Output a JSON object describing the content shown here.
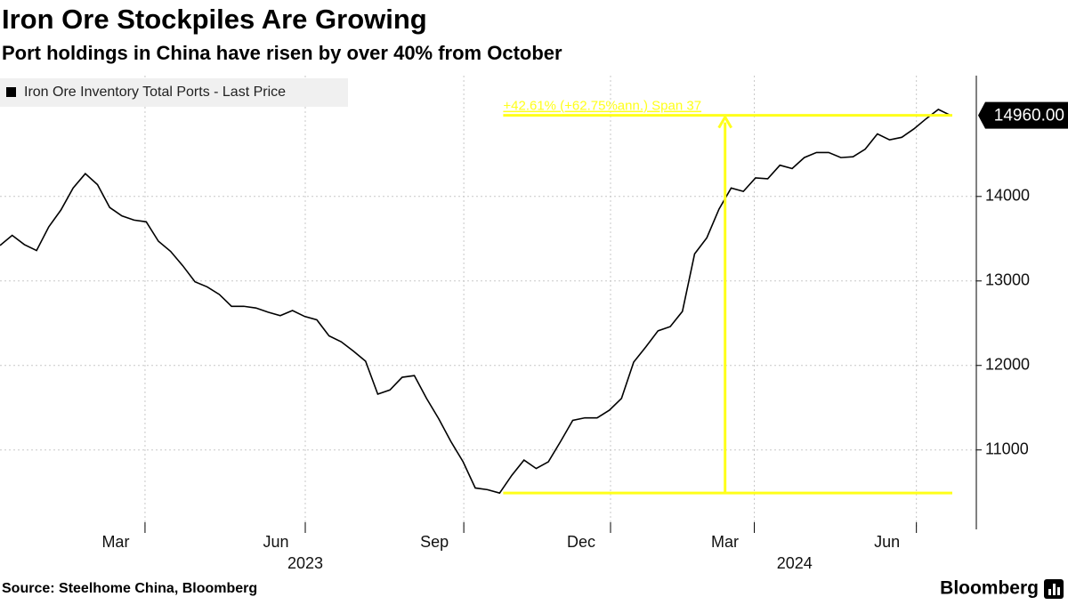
{
  "chart_data": {
    "type": "line",
    "title": "Iron Ore Stockpiles Are Growing",
    "subtitle": "Port holdings in China have risen by over 40% from October",
    "source": "Source: Steelhome China, Bloomberg",
    "brand": "Bloomberg",
    "categories": [
      null,
      null,
      null,
      null,
      null,
      null,
      null,
      null,
      null,
      null,
      null,
      null,
      null,
      null,
      null,
      null,
      null,
      null,
      null,
      null,
      null,
      null,
      null,
      null,
      null,
      null,
      null,
      null,
      null,
      null,
      null,
      null,
      null,
      null,
      null,
      null,
      null,
      null,
      null,
      null,
      null,
      null,
      null,
      null,
      null,
      null,
      null,
      null,
      null,
      null,
      null,
      null,
      null,
      null,
      null,
      null,
      null,
      null,
      null,
      null,
      null,
      null,
      null,
      null,
      null,
      null,
      null,
      null,
      null,
      null,
      null,
      null,
      null,
      null,
      null,
      null,
      null,
      null,
      null
    ],
    "series": [
      {
        "name": "Iron Ore Inventory Total Ports - Last Price",
        "color": "#000000",
        "values": [
          13420,
          13540,
          13430,
          13360,
          13640,
          13840,
          14100,
          14270,
          14140,
          13870,
          13770,
          13720,
          13700,
          13470,
          13350,
          13180,
          12990,
          12930,
          12840,
          12700,
          12700,
          12680,
          12630,
          12590,
          12650,
          12580,
          12540,
          12350,
          12280,
          12170,
          12050,
          11660,
          11710,
          11860,
          11880,
          11610,
          11370,
          11100,
          10860,
          10550,
          10530,
          10490,
          10700,
          10880,
          10780,
          10860,
          11100,
          11350,
          11380,
          11380,
          11470,
          11610,
          12040,
          12220,
          12410,
          12460,
          12640,
          13320,
          13510,
          13850,
          14100,
          14060,
          14220,
          14210,
          14370,
          14330,
          14460,
          14520,
          14520,
          14460,
          14470,
          14560,
          14740,
          14670,
          14700,
          14800,
          14920,
          15030,
          14960
        ]
      }
    ],
    "last_value_label": "14960.00",
    "annotation": {
      "text": "+42.61% (+62.75%ann.) Span 37",
      "color": "#ffff1a"
    },
    "xticks": [
      {
        "value": 11.9,
        "label": "Mar"
      },
      {
        "value": 25.05,
        "label": "Jun"
      },
      {
        "value": 38.06,
        "label": "Sep"
      },
      {
        "value": 50.1,
        "label": "Dec"
      },
      {
        "value": 61.9,
        "label": "Mar"
      },
      {
        "value": 75.2,
        "label": "Jun"
      }
    ],
    "year_labels": [
      {
        "value": 25.05,
        "label": "2023"
      },
      {
        "value": 65.2,
        "label": "2024"
      }
    ],
    "ylim": [
      10060,
      15430
    ],
    "yticks": [
      11000,
      12000,
      13000,
      14000
    ],
    "grid": true
  }
}
